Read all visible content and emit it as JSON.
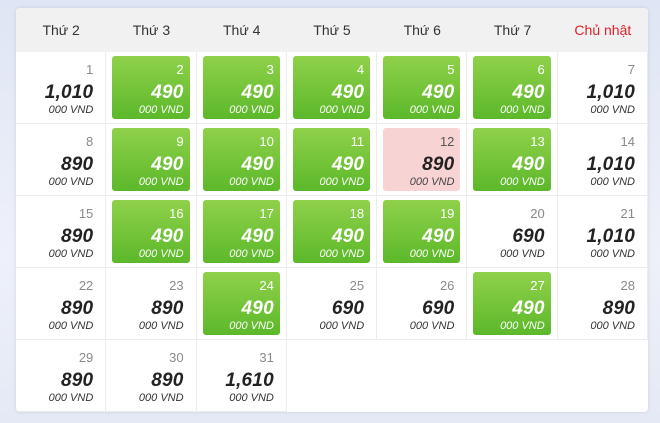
{
  "weekdays": [
    "Thứ 2",
    "Thứ 3",
    "Thứ 4",
    "Thứ 5",
    "Thứ 6",
    "Thứ 7",
    "Chủ nhật"
  ],
  "colors": {
    "cheap_fill": "#6cc235",
    "selected_fill": "#f8d3d4",
    "sunday_text": "#e0202a"
  },
  "days": [
    {
      "day": "1",
      "price": "1,010",
      "unit": "000 VND",
      "style": "normal"
    },
    {
      "day": "2",
      "price": "490",
      "unit": "000 VND",
      "style": "cheap"
    },
    {
      "day": "3",
      "price": "490",
      "unit": "000 VND",
      "style": "cheap"
    },
    {
      "day": "4",
      "price": "490",
      "unit": "000 VND",
      "style": "cheap"
    },
    {
      "day": "5",
      "price": "490",
      "unit": "000 VND",
      "style": "cheap"
    },
    {
      "day": "6",
      "price": "490",
      "unit": "000 VND",
      "style": "cheap"
    },
    {
      "day": "7",
      "price": "1,010",
      "unit": "000 VND",
      "style": "normal"
    },
    {
      "day": "8",
      "price": "890",
      "unit": "000 VND",
      "style": "normal"
    },
    {
      "day": "9",
      "price": "490",
      "unit": "000 VND",
      "style": "cheap"
    },
    {
      "day": "10",
      "price": "490",
      "unit": "000 VND",
      "style": "cheap"
    },
    {
      "day": "11",
      "price": "490",
      "unit": "000 VND",
      "style": "cheap"
    },
    {
      "day": "12",
      "price": "890",
      "unit": "000 VND",
      "style": "selected"
    },
    {
      "day": "13",
      "price": "490",
      "unit": "000 VND",
      "style": "cheap"
    },
    {
      "day": "14",
      "price": "1,010",
      "unit": "000 VND",
      "style": "normal"
    },
    {
      "day": "15",
      "price": "890",
      "unit": "000 VND",
      "style": "normal"
    },
    {
      "day": "16",
      "price": "490",
      "unit": "000 VND",
      "style": "cheap"
    },
    {
      "day": "17",
      "price": "490",
      "unit": "000 VND",
      "style": "cheap"
    },
    {
      "day": "18",
      "price": "490",
      "unit": "000 VND",
      "style": "cheap"
    },
    {
      "day": "19",
      "price": "490",
      "unit": "000 VND",
      "style": "cheap"
    },
    {
      "day": "20",
      "price": "690",
      "unit": "000 VND",
      "style": "normal"
    },
    {
      "day": "21",
      "price": "1,010",
      "unit": "000 VND",
      "style": "normal"
    },
    {
      "day": "22",
      "price": "890",
      "unit": "000 VND",
      "style": "normal"
    },
    {
      "day": "23",
      "price": "890",
      "unit": "000 VND",
      "style": "normal"
    },
    {
      "day": "24",
      "price": "490",
      "unit": "000 VND",
      "style": "cheap"
    },
    {
      "day": "25",
      "price": "690",
      "unit": "000 VND",
      "style": "normal"
    },
    {
      "day": "26",
      "price": "690",
      "unit": "000 VND",
      "style": "normal"
    },
    {
      "day": "27",
      "price": "490",
      "unit": "000 VND",
      "style": "cheap"
    },
    {
      "day": "28",
      "price": "890",
      "unit": "000 VND",
      "style": "normal"
    },
    {
      "day": "29",
      "price": "890",
      "unit": "000 VND",
      "style": "normal"
    },
    {
      "day": "30",
      "price": "890",
      "unit": "000 VND",
      "style": "normal"
    },
    {
      "day": "31",
      "price": "1,610",
      "unit": "000 VND",
      "style": "normal"
    }
  ]
}
